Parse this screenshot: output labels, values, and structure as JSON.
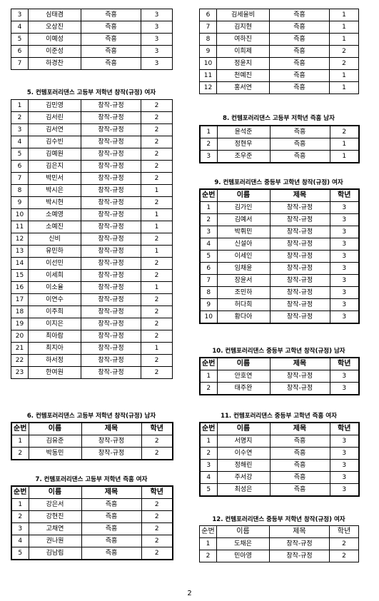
{
  "left": {
    "top_table": {
      "rows": [
        {
          "no": "3",
          "name": "심태겸",
          "title": "즉흥",
          "grade": "3"
        },
        {
          "no": "4",
          "name": "오상진",
          "title": "즉흥",
          "grade": "3"
        },
        {
          "no": "5",
          "name": "이예성",
          "title": "즉흥",
          "grade": "3"
        },
        {
          "no": "6",
          "name": "이준성",
          "title": "즉흥",
          "grade": "3"
        },
        {
          "no": "7",
          "name": "하경찬",
          "title": "즉흥",
          "grade": "3"
        }
      ]
    },
    "s5": {
      "title": "5. 컨템포러리댄스 고등부 저학년 창작(규정) 여자",
      "rows": [
        {
          "no": "1",
          "name": "김민영",
          "title": "창작-규정",
          "grade": "2"
        },
        {
          "no": "2",
          "name": "김서린",
          "title": "창작-규정",
          "grade": "2"
        },
        {
          "no": "3",
          "name": "김서연",
          "title": "창작-규정",
          "grade": "2"
        },
        {
          "no": "4",
          "name": "김수빈",
          "title": "창작-규정",
          "grade": "2"
        },
        {
          "no": "5",
          "name": "김예원",
          "title": "창작-규정",
          "grade": "2"
        },
        {
          "no": "6",
          "name": "김은지",
          "title": "창작-규정",
          "grade": "2"
        },
        {
          "no": "7",
          "name": "박민서",
          "title": "창작-규정",
          "grade": "2"
        },
        {
          "no": "8",
          "name": "박시은",
          "title": "창작-규정",
          "grade": "1"
        },
        {
          "no": "9",
          "name": "박시현",
          "title": "창작-규정",
          "grade": "2"
        },
        {
          "no": "10",
          "name": "소예영",
          "title": "창작-규정",
          "grade": "1"
        },
        {
          "no": "11",
          "name": "소예진",
          "title": "창작-규정",
          "grade": "1"
        },
        {
          "no": "12",
          "name": "신비",
          "title": "창작-규정",
          "grade": "2"
        },
        {
          "no": "13",
          "name": "유민하",
          "title": "창작-규정",
          "grade": "1"
        },
        {
          "no": "14",
          "name": "이선민",
          "title": "창작-규정",
          "grade": "2"
        },
        {
          "no": "15",
          "name": "이세희",
          "title": "창작-규정",
          "grade": "2"
        },
        {
          "no": "16",
          "name": "이소율",
          "title": "창작-규정",
          "grade": "1"
        },
        {
          "no": "17",
          "name": "이연수",
          "title": "창작-규정",
          "grade": "2"
        },
        {
          "no": "18",
          "name": "이주희",
          "title": "창작-규정",
          "grade": "2"
        },
        {
          "no": "19",
          "name": "이지은",
          "title": "창작-규정",
          "grade": "2"
        },
        {
          "no": "20",
          "name": "최아람",
          "title": "창작-규정",
          "grade": "2"
        },
        {
          "no": "21",
          "name": "최지아",
          "title": "창작-규정",
          "grade": "1"
        },
        {
          "no": "22",
          "name": "하서정",
          "title": "창작-규정",
          "grade": "2"
        },
        {
          "no": "23",
          "name": "한여원",
          "title": "창작-규정",
          "grade": "2"
        }
      ]
    },
    "s6": {
      "title": "6. 컨템포러리댄스 고등부 저학년 창작(규정) 남자",
      "headers": {
        "no": "순번",
        "name": "이름",
        "title": "제목",
        "grade": "학년"
      },
      "rows": [
        {
          "no": "1",
          "name": "김유준",
          "title": "창작-규정",
          "grade": "2"
        },
        {
          "no": "2",
          "name": "박동민",
          "title": "창작-규정",
          "grade": "2"
        }
      ]
    },
    "s7": {
      "title": "7. 컨템포러리댄스 고등부 저학년 즉흥 여자",
      "headers": {
        "no": "순번",
        "name": "이름",
        "title": "제목",
        "grade": "학년"
      },
      "rows": [
        {
          "no": "1",
          "name": "강은서",
          "title": "즉흥",
          "grade": "2"
        },
        {
          "no": "2",
          "name": "강현진",
          "title": "즉흥",
          "grade": "2"
        },
        {
          "no": "3",
          "name": "고채연",
          "title": "즉흥",
          "grade": "2"
        },
        {
          "no": "4",
          "name": "권나원",
          "title": "즉흥",
          "grade": "2"
        },
        {
          "no": "5",
          "name": "김남림",
          "title": "즉흥",
          "grade": "2"
        }
      ]
    }
  },
  "right": {
    "top_table": {
      "rows": [
        {
          "no": "6",
          "name": "김세을비",
          "title": "즉흥",
          "grade": "1"
        },
        {
          "no": "7",
          "name": "김지현",
          "title": "즉흥",
          "grade": "1"
        },
        {
          "no": "8",
          "name": "여하진",
          "title": "즉흥",
          "grade": "1"
        },
        {
          "no": "9",
          "name": "이희제",
          "title": "즉흥",
          "grade": "2"
        },
        {
          "no": "10",
          "name": "정윤지",
          "title": "즉흥",
          "grade": "2"
        },
        {
          "no": "11",
          "name": "천예진",
          "title": "즉흥",
          "grade": "1"
        },
        {
          "no": "12",
          "name": "홍서연",
          "title": "즉흥",
          "grade": "1"
        }
      ]
    },
    "s8": {
      "title": "8. 컨템포러리댄스 고등부 저학년 즉흥 남자",
      "rows": [
        {
          "no": "1",
          "name": "윤석준",
          "title": "즉흥",
          "grade": "2"
        },
        {
          "no": "2",
          "name": "정현우",
          "title": "즉흥",
          "grade": "1"
        },
        {
          "no": "3",
          "name": "조우준",
          "title": "즉흥",
          "grade": "1"
        }
      ]
    },
    "s9": {
      "title": "9. 컨템포러리댄스 중등부 고학년 창작(규정) 여자",
      "headers": {
        "no": "순번",
        "name": "이름",
        "title": "제목",
        "grade": "학년"
      },
      "rows": [
        {
          "no": "1",
          "name": "김가인",
          "title": "창작-규정",
          "grade": "3"
        },
        {
          "no": "2",
          "name": "김예서",
          "title": "창작-규정",
          "grade": "3"
        },
        {
          "no": "3",
          "name": "박휘민",
          "title": "창작-규정",
          "grade": "3"
        },
        {
          "no": "4",
          "name": "신설아",
          "title": "창작-규정",
          "grade": "3"
        },
        {
          "no": "5",
          "name": "이세인",
          "title": "창작-규정",
          "grade": "3"
        },
        {
          "no": "6",
          "name": "임채윤",
          "title": "창작-규정",
          "grade": "3"
        },
        {
          "no": "7",
          "name": "장윤서",
          "title": "창작-규정",
          "grade": "3"
        },
        {
          "no": "8",
          "name": "조민하",
          "title": "창작-규정",
          "grade": "3"
        },
        {
          "no": "9",
          "name": "허다희",
          "title": "창작-규정",
          "grade": "3"
        },
        {
          "no": "10",
          "name": "황다아",
          "title": "창작-규정",
          "grade": "3"
        }
      ]
    },
    "s10": {
      "title": "10. 컨템포러리댄스 중등부 고학년 창작(규정) 남자",
      "headers": {
        "no": "순번",
        "name": "이름",
        "title": "제목",
        "grade": "학년"
      },
      "rows": [
        {
          "no": "1",
          "name": "안호연",
          "title": "창작-규정",
          "grade": "3"
        },
        {
          "no": "2",
          "name": "태주완",
          "title": "창작-규정",
          "grade": "3"
        }
      ]
    },
    "s11": {
      "title": "11. 컨템포러리댄스 중등부 고학년 즉흥 여자",
      "headers": {
        "no": "순번",
        "name": "이름",
        "title": "제목",
        "grade": "학년"
      },
      "rows": [
        {
          "no": "1",
          "name": "서명지",
          "title": "즉흥",
          "grade": "3"
        },
        {
          "no": "2",
          "name": "이수연",
          "title": "즉흥",
          "grade": "3"
        },
        {
          "no": "3",
          "name": "정해린",
          "title": "즉흥",
          "grade": "3"
        },
        {
          "no": "4",
          "name": "주서강",
          "title": "즉흥",
          "grade": "3"
        },
        {
          "no": "5",
          "name": "최성은",
          "title": "즉흥",
          "grade": "3"
        }
      ]
    },
    "s12": {
      "title": "12. 컨템포러리댄스 중등부 저학년 창작(규정) 여자",
      "headers": {
        "no": "순번",
        "name": "이름",
        "title": "제목",
        "grade": "학년"
      },
      "rows": [
        {
          "no": "1",
          "name": "도채은",
          "title": "창작-규정",
          "grade": "2"
        },
        {
          "no": "2",
          "name": "민아영",
          "title": "창작-규정",
          "grade": "2"
        }
      ]
    }
  },
  "page_number": "2"
}
